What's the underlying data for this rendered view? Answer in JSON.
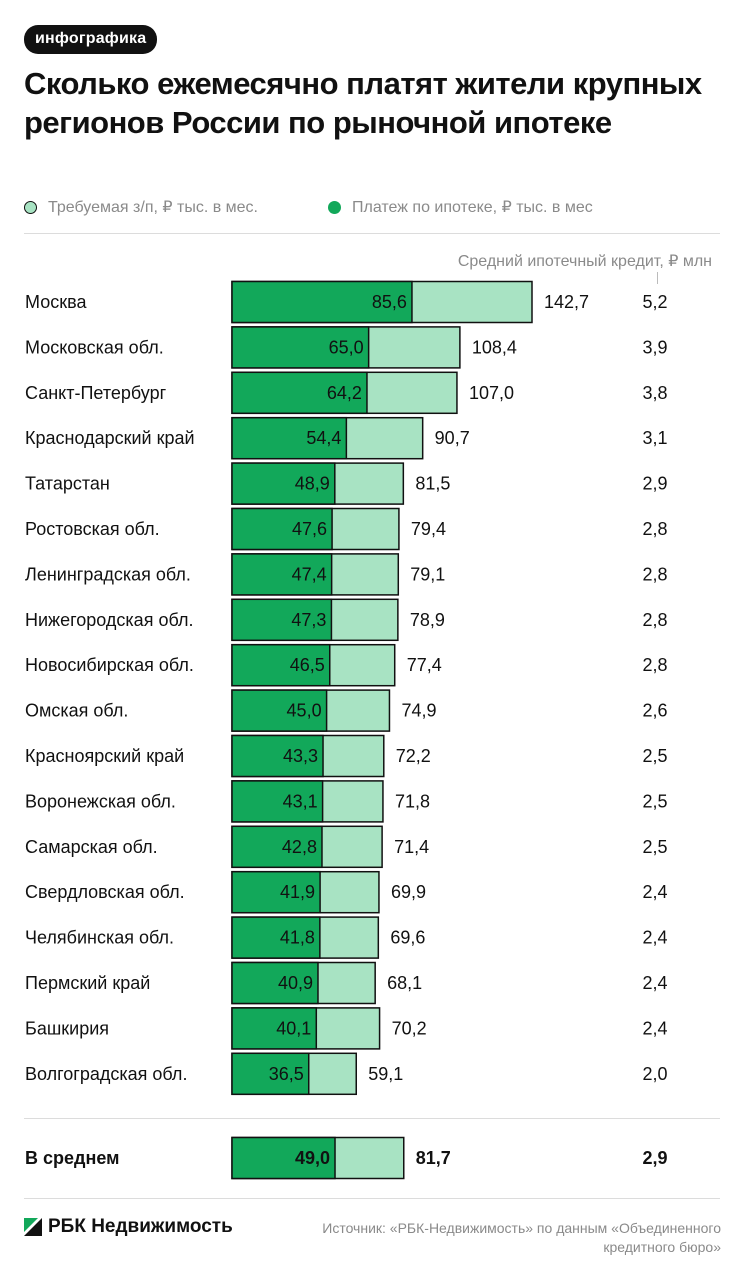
{
  "badge": "инфографика",
  "title": "Сколько ежемесячно платят жители крупных регионов России по рыночной ипотеке",
  "legend": {
    "light_label": "Требуемая з/п, ₽ тыс. в мес.",
    "dark_label": "Платеж по ипотеке, ₽ тыс. в мес"
  },
  "column_header": "Средний ипотечный кредит, ₽ млн",
  "colors": {
    "light": "#a8e3c3",
    "dark": "#12a85a",
    "outline": "#111111"
  },
  "chart_data": {
    "type": "bar",
    "orientation": "horizontal",
    "title": "Сколько ежемесячно платят жители крупных регионов России по рыночной ипотеке",
    "categories": [
      "Москва",
      "Московская обл.",
      "Санкт-Петербург",
      "Краснодарский край",
      "Татарстан",
      "Ростовская обл.",
      "Ленинградская обл.",
      "Нижегородская обл.",
      "Новосибирская обл.",
      "Омская обл.",
      "Красноярский край",
      "Воронежская обл.",
      "Самарская обл.",
      "Свердловская обл.",
      "Челябинская обл.",
      "Пермский край",
      "Башкирия",
      "Волгоградская обл."
    ],
    "series": [
      {
        "name": "Платеж по ипотеке, ₽ тыс. в мес",
        "labels": [
          "85,6",
          "65,0",
          "64,2",
          "54,4",
          "48,9",
          "47,6",
          "47,4",
          "47,3",
          "46,5",
          "45,0",
          "43,3",
          "43,1",
          "42,8",
          "41,9",
          "41,8",
          "40,9",
          "40,1",
          "36,5"
        ],
        "values": [
          85.6,
          65.0,
          64.2,
          54.4,
          48.9,
          47.6,
          47.4,
          47.3,
          46.5,
          45.0,
          43.3,
          43.1,
          42.8,
          41.9,
          41.8,
          40.9,
          40.1,
          36.5
        ]
      },
      {
        "name": "Требуемая з/п, ₽ тыс. в мес.",
        "labels": [
          "142,7",
          "108,4",
          "107,0",
          "90,7",
          "81,5",
          "79,4",
          "79,1",
          "78,9",
          "77,4",
          "74,9",
          "72,2",
          "71,8",
          "71,4",
          "69,9",
          "69,6",
          "68,1",
          "70,2",
          "59,1"
        ],
        "values": [
          142.7,
          108.4,
          107.0,
          90.7,
          81.5,
          79.4,
          79.1,
          78.9,
          77.4,
          74.9,
          72.2,
          71.8,
          71.4,
          69.9,
          69.6,
          68.1,
          70.2,
          59.1
        ]
      }
    ],
    "extra_column": {
      "name": "Средний ипотечный кредит, ₽ млн",
      "labels": [
        "5,2",
        "3,9",
        "3,8",
        "3,1",
        "2,9",
        "2,8",
        "2,8",
        "2,8",
        "2,8",
        "2,6",
        "2,5",
        "2,5",
        "2,5",
        "2,4",
        "2,4",
        "2,4",
        "2,4",
        "2,0"
      ]
    },
    "average": {
      "label": "В среднем",
      "payment": 49.0,
      "payment_label": "49,0",
      "salary": 81.7,
      "salary_label": "81,7",
      "loan_label": "2,9"
    }
  },
  "footer": {
    "brand": "РБК Недвижимость",
    "source": "Источник: «РБК-Недвижимость» по данным «Объединенного кредитного бюро»"
  }
}
